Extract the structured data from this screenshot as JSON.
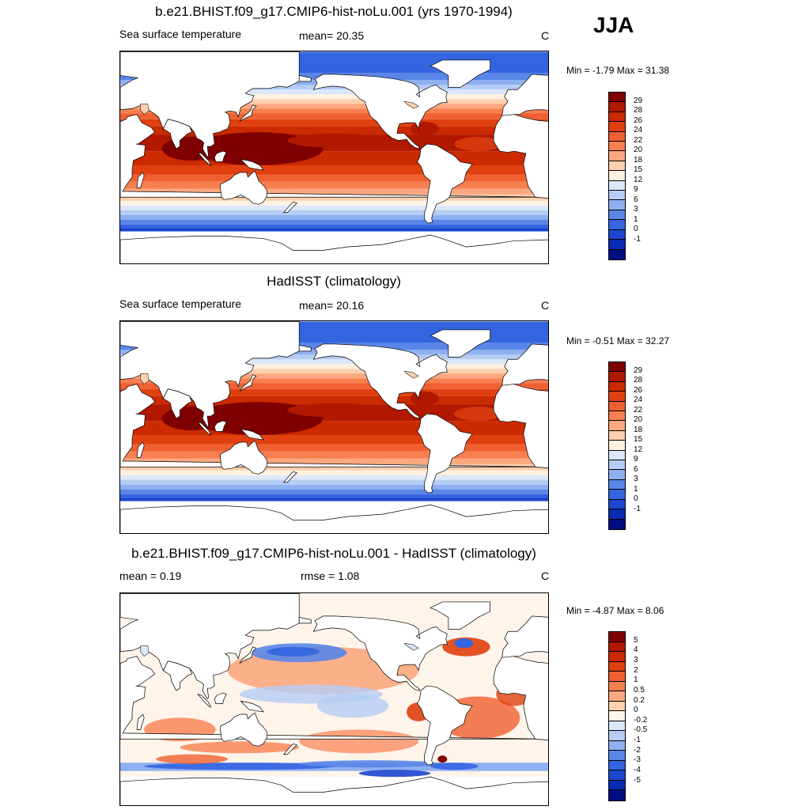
{
  "season": "JJA",
  "panels": [
    {
      "title": "b.e21.BHIST.f09_g17.CMIP6-hist-noLu.001 (yrs 1970-1994)",
      "left_label": "Sea surface temperature",
      "center_label": "mean=  20.35",
      "units": "C",
      "minmax": "Min =  -1.79 Max =  31.38",
      "levels": [
        "29",
        "28",
        "26",
        "24",
        "22",
        "20",
        "18",
        "15",
        "12",
        "9",
        "6",
        "3",
        "1",
        "0",
        "-1"
      ],
      "colors": [
        "#7f0000",
        "#b01800",
        "#cc2a00",
        "#e04010",
        "#f06030",
        "#f88050",
        "#fba880",
        "#fdd0b0",
        "#fff0e0",
        "#dce8fa",
        "#b5cdf5",
        "#8fb0f0",
        "#5a86e8",
        "#3464e0",
        "#1c46cf",
        "#0a2ab0",
        "#000d80"
      ],
      "ice_from_deg": -62
    },
    {
      "title": "HadISST (climatology)",
      "left_label": "Sea surface temperature",
      "center_label": "mean=  20.16",
      "units": "C",
      "minmax": "Min =  -0.51 Max =  32.27",
      "levels": [
        "29",
        "28",
        "26",
        "24",
        "22",
        "20",
        "18",
        "15",
        "12",
        "9",
        "6",
        "3",
        "1",
        "0",
        "-1"
      ],
      "colors": [
        "#7f0000",
        "#b01800",
        "#cc2a00",
        "#e04010",
        "#f06030",
        "#f88050",
        "#fba880",
        "#fdd0b0",
        "#fff0e0",
        "#dce8fa",
        "#b5cdf5",
        "#8fb0f0",
        "#5a86e8",
        "#3464e0",
        "#1c46cf",
        "#0a2ab0",
        "#000d80"
      ],
      "ice_from_deg": -62
    },
    {
      "title": "b.e21.BHIST.f09_g17.CMIP6-hist-noLu.001 - HadISST (climatology)",
      "left_label": "mean =   0.19",
      "center_label": "rmse =   1.08",
      "units": "C",
      "minmax": "Min =  -4.87 Max =   8.06",
      "levels": [
        "5",
        "4",
        "3",
        "2",
        "1",
        "0.5",
        "0.2",
        "0",
        "-0.2",
        "-0.5",
        "-1",
        "-2",
        "-3",
        "-4",
        "-5"
      ],
      "colors": [
        "#7f0000",
        "#b01800",
        "#cc2a00",
        "#e04010",
        "#f06030",
        "#f88050",
        "#fba880",
        "#fdd0b0",
        "#fff4ea",
        "#dce8fa",
        "#b5cdf5",
        "#8fb0f0",
        "#5a86e8",
        "#3464e0",
        "#1c46cf",
        "#0a2ab0",
        "#000d80"
      ],
      "ice_from_deg": -65
    }
  ]
}
